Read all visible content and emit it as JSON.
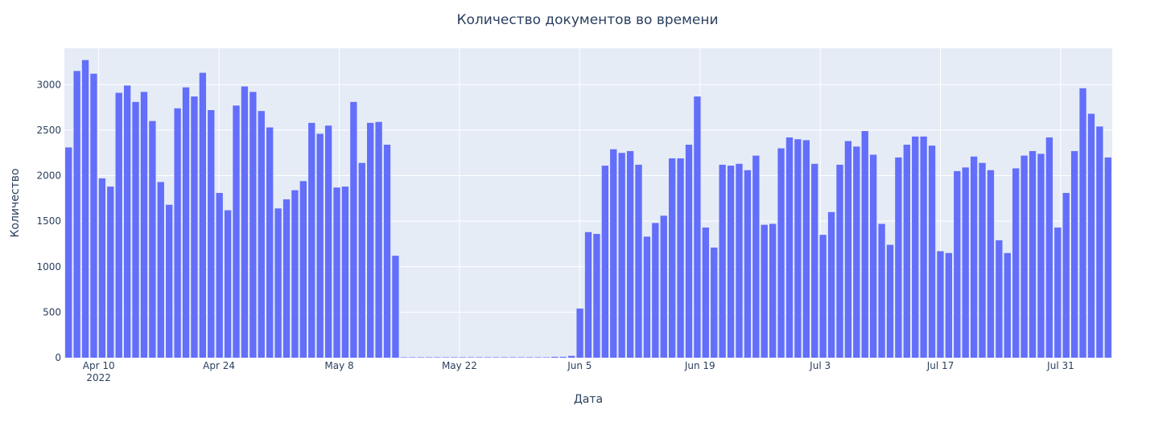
{
  "chart_data": {
    "type": "bar",
    "title": "Количество документов во времени",
    "xlabel": "Дата",
    "ylabel": "Количество",
    "x_start": "2022-04-06",
    "x_end": "2022-08-06",
    "ylim": [
      0,
      3400
    ],
    "yticks": [
      0,
      500,
      1000,
      1500,
      2000,
      2500,
      3000
    ],
    "xticks": [
      {
        "date": "2022-04-10",
        "label": "Apr 10",
        "sublabel": "2022"
      },
      {
        "date": "2022-04-24",
        "label": "Apr 24",
        "sublabel": ""
      },
      {
        "date": "2022-05-08",
        "label": "May 8",
        "sublabel": ""
      },
      {
        "date": "2022-05-22",
        "label": "May 22",
        "sublabel": ""
      },
      {
        "date": "2022-06-05",
        "label": "Jun 5",
        "sublabel": ""
      },
      {
        "date": "2022-06-19",
        "label": "Jun 19",
        "sublabel": ""
      },
      {
        "date": "2022-07-03",
        "label": "Jul 3",
        "sublabel": ""
      },
      {
        "date": "2022-07-17",
        "label": "Jul 17",
        "sublabel": ""
      },
      {
        "date": "2022-07-31",
        "label": "Jul 31",
        "sublabel": ""
      }
    ],
    "bar_color": "#636efa",
    "plot_bg": "#e5ecf6",
    "grid": true,
    "values": [
      2310,
      3150,
      3270,
      3120,
      1970,
      1880,
      2910,
      2990,
      2810,
      2920,
      2600,
      1930,
      1680,
      2740,
      2970,
      2870,
      3130,
      2720,
      1810,
      1620,
      2770,
      2980,
      2920,
      2710,
      2530,
      1640,
      1740,
      1840,
      1940,
      2580,
      2460,
      2550,
      1870,
      1880,
      2810,
      2140,
      2580,
      2590,
      2340,
      1120,
      5,
      5,
      5,
      5,
      5,
      5,
      5,
      5,
      5,
      5,
      5,
      5,
      5,
      5,
      5,
      5,
      5,
      5,
      10,
      10,
      20,
      540,
      1380,
      1360,
      2110,
      2290,
      2250,
      2270,
      2120,
      1330,
      1480,
      1560,
      2190,
      2190,
      2340,
      2870,
      1430,
      1210,
      2120,
      2110,
      2130,
      2060,
      2220,
      1460,
      1470,
      2300,
      2420,
      2400,
      2390,
      2130,
      1350,
      1600,
      2120,
      2380,
      2320,
      2490,
      2230,
      1470,
      1240,
      2200,
      2340,
      2430,
      2430,
      2330,
      1170,
      1150,
      2050,
      2090,
      2210,
      2140,
      2060,
      1290,
      1150,
      2080,
      2220,
      2270,
      2240,
      2420,
      1430,
      1810,
      2270,
      2960,
      2680,
      2540,
      2200
    ]
  }
}
